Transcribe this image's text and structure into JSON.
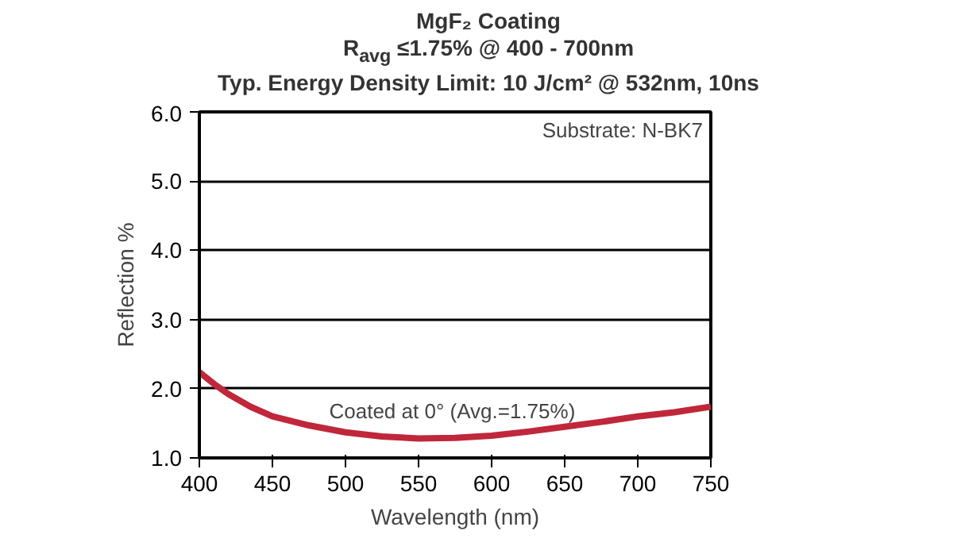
{
  "chart_data": {
    "type": "line",
    "title": "MgF₂ Coating",
    "subtitle": "R$_{avg}$ ≤1.75% @ 400 - 700nm\nTyp. Energy Density Limit: 10 J/cm² @ 532nm, 10ns",
    "xlabel": "Wavelength (nm)",
    "ylabel": "Reflection %",
    "x": [
      400,
      410,
      420,
      435,
      450,
      475,
      500,
      525,
      550,
      575,
      600,
      625,
      650,
      675,
      700,
      725,
      750
    ],
    "series": [
      {
        "color": "#c0273a",
        "values": [
          2.24,
          2.07,
          1.92,
          1.74,
          1.6,
          1.47,
          1.37,
          1.31,
          1.28,
          1.29,
          1.32,
          1.38,
          1.45,
          1.52,
          1.6,
          1.66,
          1.74
        ]
      }
    ],
    "xlim": [
      400,
      750
    ],
    "xticks": [
      400,
      450,
      500,
      550,
      600,
      650,
      700,
      750
    ],
    "ylim": [
      1.0,
      6.0
    ],
    "yticks": [
      {
        "value": 1.0,
        "label": "1.0"
      },
      {
        "value": 2.0,
        "label": "2.0"
      },
      {
        "value": 3.0,
        "label": "3.0"
      },
      {
        "value": 4.0,
        "label": "4.0"
      },
      {
        "value": 5.0,
        "label": "5.0"
      },
      {
        "value": 6.0,
        "label": "6.0"
      }
    ],
    "grid": "y",
    "marker": "none",
    "line_style": "solid",
    "annotations": [
      "Substrate: N-BK7",
      "Coated at 0°  (Avg.=1.75%)"
    ]
  }
}
